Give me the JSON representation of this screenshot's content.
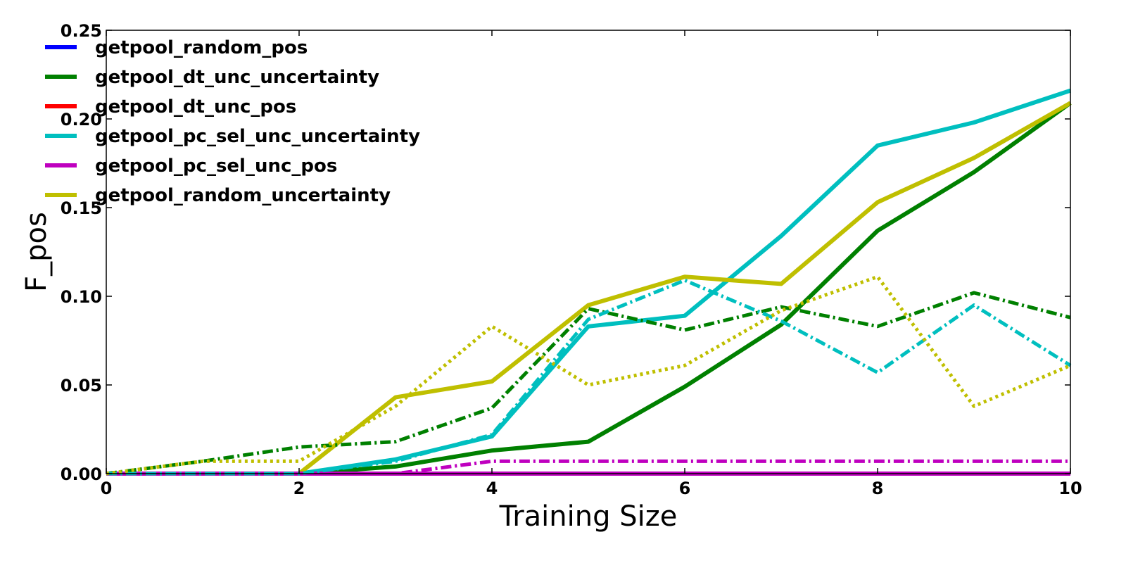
{
  "chart_data": {
    "type": "line",
    "xlabel": "Training Size",
    "ylabel": "F_pos",
    "xlim": [
      0,
      10
    ],
    "ylim": [
      0,
      0.25
    ],
    "x_ticks": [
      "0",
      "2",
      "4",
      "6",
      "8",
      "10"
    ],
    "y_ticks": [
      "0.00",
      "0.05",
      "0.10",
      "0.15",
      "0.20",
      "0.25"
    ],
    "grid": false,
    "legend_position": "top-left",
    "x": [
      0,
      1,
      2,
      3,
      4,
      5,
      6,
      7,
      8,
      9,
      10
    ],
    "series": [
      {
        "name": "getpool_random_pos",
        "color": "#0000ff",
        "style": "dashdot",
        "legend": true,
        "values": [
          0,
          0,
          0,
          0,
          0,
          0,
          0,
          0,
          0,
          0,
          0
        ]
      },
      {
        "name": "getpool_dt_unc_uncertainty",
        "color": "#008000",
        "style": "solid",
        "legend": true,
        "values": [
          0,
          0,
          0,
          0.004,
          0.013,
          0.018,
          0.049,
          0.084,
          0.137,
          0.17,
          0.209
        ]
      },
      {
        "name": "getpool_dt_unc_pos",
        "color": "#ff0000",
        "style": "dashdot",
        "legend": true,
        "values": [
          0,
          0,
          0,
          0,
          0,
          0,
          0,
          0,
          0,
          0,
          0
        ]
      },
      {
        "name": "getpool_pc_sel_unc_uncertainty",
        "color": "#00bfbf",
        "style": "solid",
        "legend": true,
        "values": [
          0,
          0,
          0,
          0.008,
          0.021,
          0.083,
          0.089,
          0.134,
          0.185,
          0.198,
          0.216
        ]
      },
      {
        "name": "getpool_pc_sel_unc_pos",
        "color": "#bf00bf",
        "style": "dashdot",
        "legend": true,
        "values": [
          0,
          0,
          0,
          0,
          0.007,
          0.007,
          0.007,
          0.007,
          0.007,
          0.007,
          0.007
        ]
      },
      {
        "name": "getpool_random_uncertainty",
        "color": "#bfbf00",
        "style": "solid",
        "legend": true,
        "values": [
          0,
          0,
          0,
          0.043,
          0.052,
          0.095,
          0.111,
          0.107,
          0.153,
          0.178,
          0.209
        ]
      },
      {
        "color": "#bf00bf",
        "style": "solid",
        "legend": false,
        "values": [
          0,
          0,
          0,
          0,
          0,
          0,
          0,
          0,
          0,
          0,
          0
        ]
      },
      {
        "color": "#008000",
        "style": "dashdot",
        "legend": false,
        "values": [
          0,
          0.007,
          0.015,
          0.018,
          0.037,
          0.093,
          0.081,
          0.094,
          0.083,
          0.102,
          0.088
        ]
      },
      {
        "color": "#00bfbf",
        "style": "dashdot",
        "legend": false,
        "values": [
          0,
          0,
          0,
          0.007,
          0.022,
          0.087,
          0.109,
          0.086,
          0.057,
          0.095,
          0.061
        ]
      },
      {
        "color": "#bfbf00",
        "style": "dotted",
        "legend": false,
        "values": [
          0,
          0.007,
          0.007,
          0.038,
          0.083,
          0.05,
          0.061,
          0.092,
          0.111,
          0.038,
          0.061
        ]
      }
    ]
  }
}
